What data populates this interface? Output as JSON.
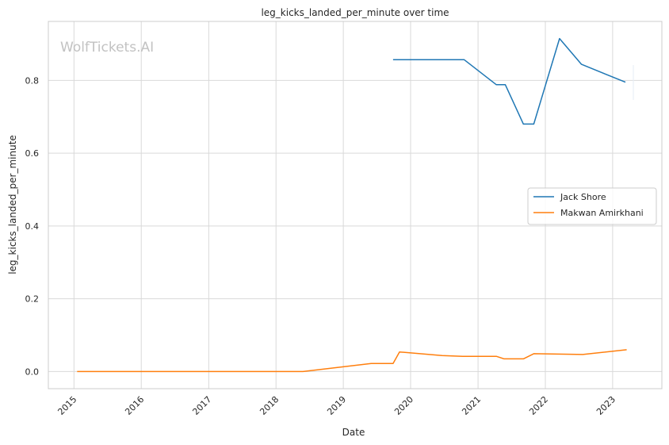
{
  "chart_data": {
    "type": "line",
    "title": "leg_kicks_landed_per_minute over time",
    "xlabel": "Date",
    "ylabel": "leg_kicks_landed_per_minute",
    "watermark": "WolfTickets.AI",
    "x_type": "date",
    "xlim": [
      "2014-08-15",
      "2023-09-25"
    ],
    "ylim": [
      -0.047,
      0.962
    ],
    "x_ticks": [
      "2015",
      "2016",
      "2017",
      "2018",
      "2019",
      "2020",
      "2021",
      "2022",
      "2023"
    ],
    "y_ticks": [
      "0.0",
      "0.2",
      "0.4",
      "0.6",
      "0.8"
    ],
    "grid": true,
    "legend": "center-right",
    "series": [
      {
        "name": "Jack Shore",
        "color": "#1f77b4",
        "x": [
          "2019-09-28",
          "2020-10-17",
          "2021-04-10",
          "2021-05-29",
          "2021-09-04",
          "2021-10-30",
          "2022-03-19",
          "2022-07-16",
          "2023-03-11"
        ],
        "y": [
          0.857,
          0.857,
          0.788,
          0.788,
          0.68,
          0.68,
          0.915,
          0.844,
          0.795
        ]
      },
      {
        "name": "Makwan Amirkhani",
        "color": "#ff7f0e",
        "x": [
          "2015-01-18",
          "2018-05-27",
          "2019-06-01",
          "2019-09-28",
          "2019-11-02",
          "2020-06-20",
          "2020-10-10",
          "2021-04-10",
          "2021-05-22",
          "2021-09-04",
          "2021-10-30",
          "2022-07-23",
          "2023-03-18"
        ],
        "y": [
          0.0,
          0.0,
          0.022,
          0.022,
          0.054,
          0.044,
          0.042,
          0.042,
          0.035,
          0.035,
          0.049,
          0.047,
          0.06
        ]
      }
    ]
  }
}
